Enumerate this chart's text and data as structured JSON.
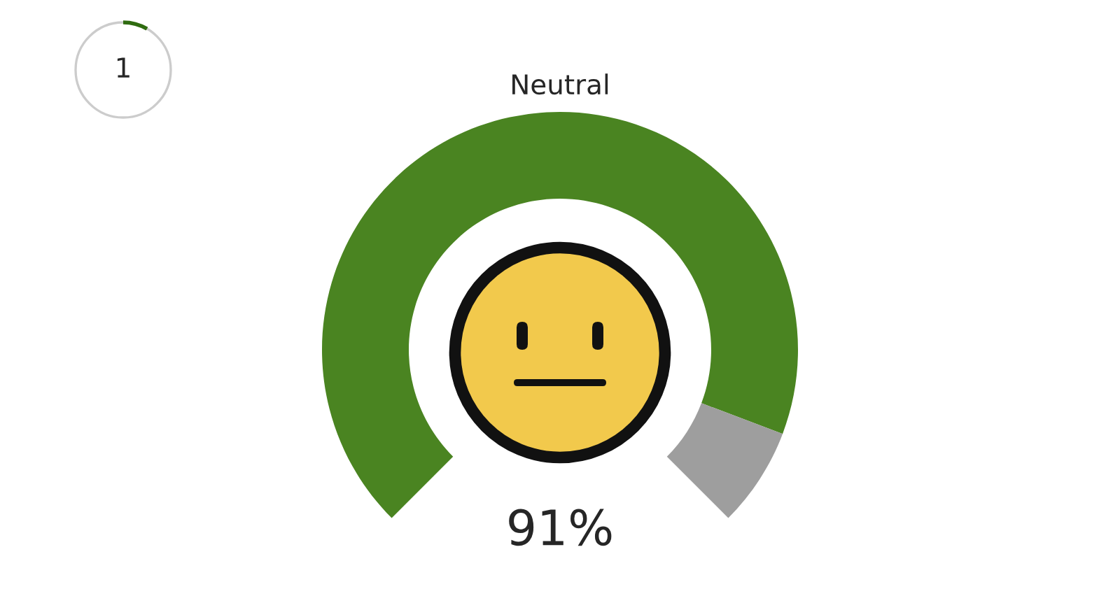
{
  "chart_data": {
    "type": "donut",
    "title": "Neutral",
    "categories": [
      null,
      null
    ],
    "values": [
      91,
      9
    ],
    "colors": [
      "#4a8421",
      "#9e9e9e"
    ],
    "annotations": [
      "1",
      "91%"
    ]
  }
}
